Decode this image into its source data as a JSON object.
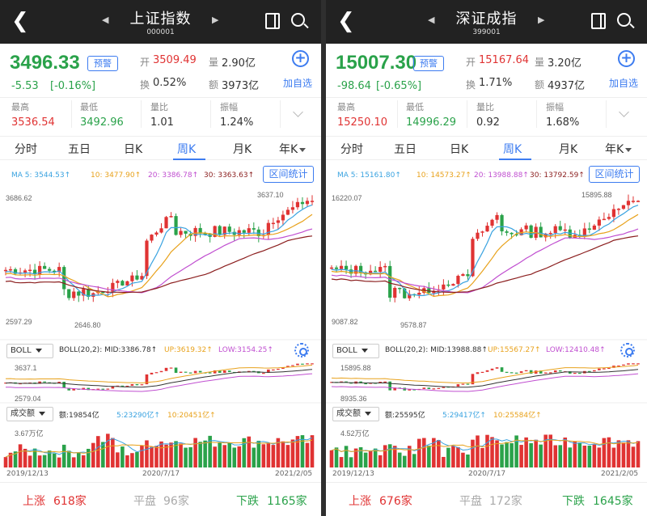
{
  "panels": [
    {
      "title": "上证指数",
      "code": "000001",
      "price": "3496.33",
      "change": "-5.53",
      "change_pct": "[-0.16%]",
      "alert": "预警",
      "open_label": "开",
      "open": "3509.49",
      "volume_label": "量",
      "volume": "2.90亿",
      "turnover_label": "换",
      "turnover": "0.52%",
      "amount_label": "额",
      "amount": "3973亿",
      "add_fav": "加自选",
      "high_label": "最高",
      "high": "3536.54",
      "low_label": "最低",
      "low": "3492.96",
      "ratio_label": "量比",
      "ratio": "1.01",
      "amp_label": "振幅",
      "amp": "1.24%",
      "tabs": [
        "分时",
        "五日",
        "日K",
        "周K",
        "月K",
        "年K"
      ],
      "ma": [
        "MA 5: 3544.53↑",
        "10: 3477.90↑",
        "20: 3386.78↑",
        "30: 3363.63↑"
      ],
      "interval": "区间统计",
      "ytop": "3686.62",
      "ybot": "2597.29",
      "maxlab": "3637.10",
      "minlab": "2646.80",
      "boll_btn": "BOLL",
      "boll": [
        "BOLL(20,2): MID:3386.78↑",
        "UP:3619.32↑",
        "LOW:3154.25↑"
      ],
      "boll_top": "3637.1",
      "boll_bot": "2579.04",
      "vol_btn": "成交额",
      "vols": [
        "额:19854亿",
        "5:23290亿↑",
        "10:20451亿↑"
      ],
      "vol_top": "3.67万亿",
      "dates": [
        "2019/12/13",
        "2020/7/17",
        "2021/2/05"
      ],
      "up": "上涨",
      "up_n": "618家",
      "flat": "平盘",
      "flat_n": "96家",
      "down": "下跌",
      "down_n": "1165家",
      "seed": 7
    },
    {
      "title": "深证成指",
      "code": "399001",
      "price": "15007.30",
      "change": "-98.64",
      "change_pct": "[-0.65%]",
      "alert": "预警",
      "open_label": "开",
      "open": "15167.64",
      "volume_label": "量",
      "volume": "3.20亿",
      "turnover_label": "换",
      "turnover": "1.71%",
      "amount_label": "额",
      "amount": "4937亿",
      "add_fav": "加自选",
      "high_label": "最高",
      "high": "15250.10",
      "low_label": "最低",
      "low": "14996.29",
      "ratio_label": "量比",
      "ratio": "0.92",
      "amp_label": "振幅",
      "amp": "1.68%",
      "tabs": [
        "分时",
        "五日",
        "日K",
        "周K",
        "月K",
        "年K"
      ],
      "ma": [
        "MA 5: 15161.80↑",
        "10: 14573.27↑",
        "20: 13988.88↑",
        "30: 13792.59↑"
      ],
      "interval": "区间统计",
      "ytop": "16220.07",
      "ybot": "9087.82",
      "maxlab": "15895.88",
      "minlab": "9578.87",
      "boll_btn": "BOLL",
      "boll": [
        "BOLL(20,2): MID:13988.88↑",
        "UP:15567.27↑",
        "LOW:12410.48↑"
      ],
      "boll_top": "15895.88",
      "boll_bot": "8935.36",
      "vol_btn": "成交额",
      "vols": [
        "额:25595亿",
        "5:29417亿↑",
        "10:25584亿↑"
      ],
      "vol_top": "4.52万亿",
      "dates": [
        "2019/12/13",
        "2020/7/17",
        "2021/2/05"
      ],
      "up": "上涨",
      "up_n": "676家",
      "flat": "平盘",
      "flat_n": "172家",
      "down": "下跌",
      "down_n": "1645家",
      "seed": 13
    }
  ],
  "colors": {
    "up": "#e03333",
    "down": "#2aa24a",
    "accent": "#3d7cf0",
    "ma5": "#3aa3e0",
    "ma10": "#e8a21c",
    "ma20": "#c04fd0",
    "ma30": "#8b1e1e"
  }
}
